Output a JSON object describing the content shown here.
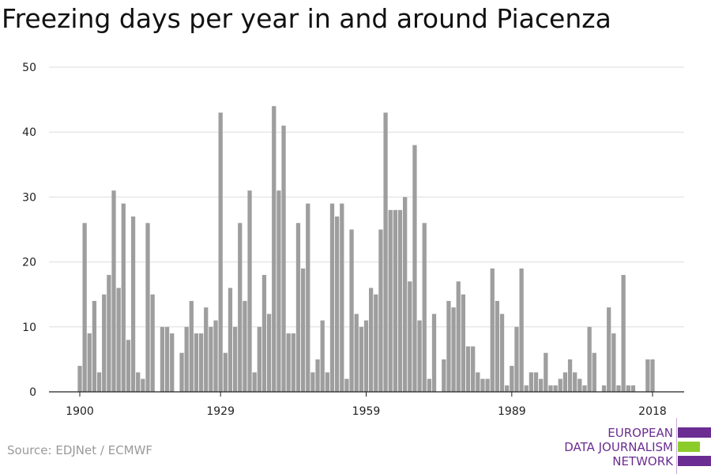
{
  "title": "Freezing days per year in and around Piacenza",
  "source": "Source: EDJNet / ECMWF",
  "logo": {
    "line1": "EUROPEAN",
    "line2": "DATA JOURNALISM",
    "line3": "NETWORK",
    "colors": {
      "purple": "#6b2d91",
      "green": "#8ccc2a"
    }
  },
  "chart_data": {
    "type": "bar",
    "start_year": 1900,
    "end_year": 2018,
    "years": [
      1900,
      1901,
      1902,
      1903,
      1904,
      1905,
      1906,
      1907,
      1908,
      1909,
      1910,
      1911,
      1912,
      1913,
      1914,
      1915,
      1916,
      1917,
      1918,
      1919,
      1920,
      1921,
      1922,
      1923,
      1924,
      1925,
      1926,
      1927,
      1928,
      1929,
      1930,
      1931,
      1932,
      1933,
      1934,
      1935,
      1936,
      1937,
      1938,
      1939,
      1940,
      1941,
      1942,
      1943,
      1944,
      1945,
      1946,
      1947,
      1948,
      1949,
      1950,
      1951,
      1952,
      1953,
      1954,
      1955,
      1956,
      1957,
      1958,
      1959,
      1960,
      1961,
      1962,
      1963,
      1964,
      1965,
      1966,
      1967,
      1968,
      1969,
      1970,
      1971,
      1972,
      1973,
      1974,
      1975,
      1976,
      1977,
      1978,
      1979,
      1980,
      1981,
      1982,
      1983,
      1984,
      1985,
      1986,
      1987,
      1988,
      1989,
      1990,
      1991,
      1992,
      1993,
      1994,
      1995,
      1996,
      1997,
      1998,
      1999,
      2000,
      2001,
      2002,
      2003,
      2004,
      2005,
      2006,
      2007,
      2008,
      2009,
      2010,
      2011,
      2012,
      2013,
      2014,
      2015,
      2016,
      2017,
      2018
    ],
    "values": [
      4,
      26,
      9,
      14,
      3,
      15,
      18,
      31,
      16,
      29,
      8,
      27,
      3,
      2,
      26,
      15,
      0,
      10,
      10,
      9,
      0,
      6,
      10,
      14,
      9,
      9,
      13,
      10,
      11,
      43,
      6,
      16,
      10,
      26,
      14,
      31,
      3,
      10,
      18,
      12,
      44,
      31,
      41,
      9,
      9,
      26,
      19,
      29,
      3,
      5,
      11,
      3,
      29,
      27,
      29,
      2,
      25,
      12,
      10,
      11,
      16,
      15,
      25,
      43,
      28,
      28,
      28,
      30,
      17,
      38,
      11,
      26,
      2,
      12,
      0,
      5,
      14,
      13,
      17,
      15,
      7,
      7,
      3,
      2,
      2,
      19,
      14,
      12,
      1,
      4,
      10,
      19,
      1,
      3,
      3,
      2,
      6,
      1,
      1,
      2,
      3,
      5,
      3,
      2,
      1,
      10,
      6,
      0,
      1,
      13,
      9,
      1,
      18,
      1,
      1,
      0,
      0,
      5,
      5
    ],
    "xticks": [
      "1900",
      "1929",
      "1959",
      "1989",
      "2018"
    ],
    "yticks": [
      "0",
      "10",
      "20",
      "30",
      "40",
      "50"
    ],
    "ylim": [
      0,
      50
    ],
    "grid": true,
    "bar_color": "#9e9e9e",
    "grid_color": "#dddddd",
    "axis_color": "#222222",
    "xlabel": "",
    "ylabel": ""
  }
}
